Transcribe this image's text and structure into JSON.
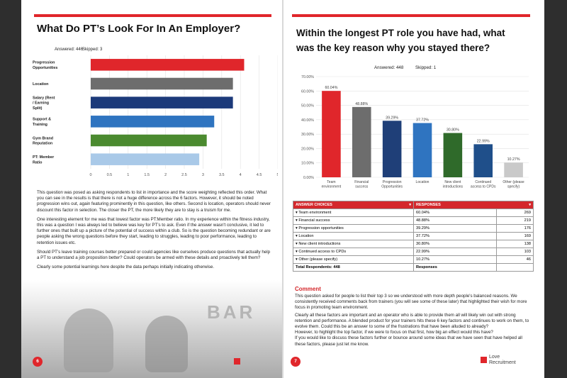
{
  "left_page": {
    "title": "What Do PT’s Look For In An Employer?",
    "answered": "Answered: 446",
    "skipped": "Skipped: 3",
    "paragraphs": [
      "This question was posed as asking respondents to list in importance and the score weighting reflected this order.  What you can see in the results is that there is not a huge difference across the 6 factors.  However, it should be noted progression wins out, again featuring prominently in this question, like others.  Second is location, operators should never discount this factor in selection.  The closer the PT, the more likely they are to stay is a truism for me.",
      "One interesting element for me was that lowest factor was PT:Member ratio.  In my experience within the fitness industry, this was a question I was always led to believe was key for PT’s to ask.  Even if the answer wasn't conclusive, it led to further ones that built up a picture of the potential of success within a club.  So is the question becoming redundant or are people asking the wrong questions before they start, leading to struggles, leading to poor performance, leading to retention issues etc.",
      "Should PT’s leave training courses better prepared or could agencies like ourselves produce questions that actually help a PT to understand a job proposition better?  Could operators be armed with these details and proactively tell them?",
      "Clearly some potential learnings here despite the data perhaps initially indicating otherwise."
    ],
    "page_number": "6",
    "photo_text": "BAR"
  },
  "right_page": {
    "title_line1": "Within the longest PT role you have had, what",
    "title_line2": "was the key reason why you stayed there?",
    "answered": "Answered: 448",
    "skipped": "Skipped: 1",
    "table_headers": [
      "ANSWER CHOICES",
      "RESPONSES"
    ],
    "table_rows": [
      {
        "choice": "Team environment",
        "pct": "60.04%",
        "count": "269"
      },
      {
        "choice": "Financial success",
        "pct": "48.88%",
        "count": "219"
      },
      {
        "choice": "Progression opportunities",
        "pct": "39.29%",
        "count": "176"
      },
      {
        "choice": "Location",
        "pct": "37.72%",
        "count": "169"
      },
      {
        "choice": "New client introductions",
        "pct": "30.80%",
        "count": "138"
      },
      {
        "choice": "Continued access to CPDs",
        "pct": "22.99%",
        "count": "103"
      },
      {
        "choice": "Other (please specify)",
        "pct": "10.27%",
        "count": "46"
      }
    ],
    "total_label": "Total Respondents: 448",
    "total_resp_label": "Responses",
    "comment_title": "Comment",
    "comment_paragraphs": [
      "This question asked for people to list their top 3 so we understood with more depth people's balanced reasons.  We consistently received comments back from trainers (you will see some of these later) that highlighted their wish for more focus in promoting team environment.",
      "Clearly all these factors are important and an operator who is able to provide them all will likely win out with strong retention and performance.  A blended product for your trainers hits these 6 key factors and continues to work on them, to evolve them.  Could this be an answer to some of the frustrations that have been alluded to already?",
      "However, to highlight the top factor, if we were to focus on that first, how big an effect would this have?",
      "If you would like to discuss these factors further or bounce around some ideas that we have seen that have helped all these factors, please just let me know."
    ],
    "page_number": "7",
    "logo_line1": "Love",
    "logo_line2": "Recruitment"
  },
  "colors": {
    "red": "#e0262b",
    "grey": "#6d6d6d",
    "navy": "#1c3a7a",
    "blue": "#2f74c0",
    "green": "#4b8a2f",
    "lightblue": "#a9c9e8",
    "pct_bar_dark": "#1f3f78",
    "pct_bar_green": "#2f6a2a",
    "pct_bar_light": "#c9c9c9"
  },
  "chart_data": [
    {
      "type": "bar",
      "orientation": "horizontal",
      "categories": [
        "Progression Opportunities",
        "Location",
        "Salary (Rent / Earning Split)",
        "Support & Training",
        "Gym Brand Reputation",
        "PT: Member Ratio"
      ],
      "values": [
        4.1,
        3.8,
        3.8,
        3.3,
        3.1,
        2.9
      ],
      "colors": [
        "#e0262b",
        "#6d6d6d",
        "#1c3a7a",
        "#2f74c0",
        "#4b8a2f",
        "#a9c9e8"
      ],
      "xlim": [
        0,
        5
      ],
      "xticks": [
        "0",
        "0.5",
        "1",
        "1.5",
        "2",
        "2.5",
        "3",
        "3.5",
        "4",
        "4.5",
        "5"
      ],
      "grid": true
    },
    {
      "type": "bar",
      "categories": [
        "Team environment",
        "Financial success",
        "Progression Opportunities",
        "Location",
        "New client introductions",
        "Continued access to CPDs",
        "Other (please specify)"
      ],
      "values": [
        60.04,
        48.88,
        39.29,
        37.72,
        30.8,
        22.99,
        10.27
      ],
      "value_labels": [
        "60.04%",
        "48.88%",
        "39.29%",
        "37.72%",
        "30.80%",
        "22.99%",
        "10.27%"
      ],
      "colors": [
        "#e0262b",
        "#6d6d6d",
        "#1f3f78",
        "#2f74c0",
        "#2f6a2a",
        "#1f4f8a",
        "#c9c9c9"
      ],
      "ylim": [
        0,
        70
      ],
      "yticks": [
        "0.00%",
        "10.00%",
        "20.00%",
        "30.00%",
        "40.00%",
        "50.00%",
        "60.00%",
        "70.00%"
      ],
      "grid": true
    }
  ]
}
